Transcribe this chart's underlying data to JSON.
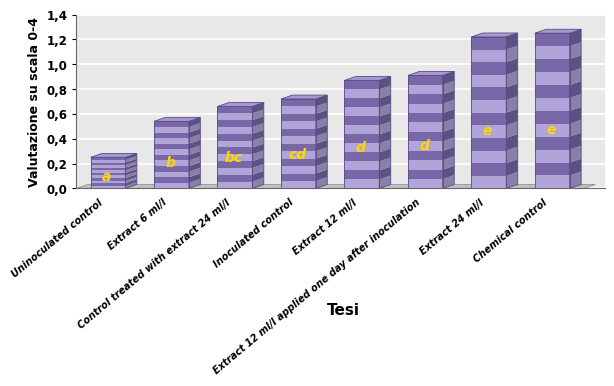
{
  "categories": [
    "Uninoculated control",
    "Extract 6 ml/l",
    "Control treated with extract 24 ml/l",
    "Inoculated control",
    "Extract 12 ml/l",
    "Extract 12 ml/l applied one day after inoculation",
    "Extract 24 ml/l",
    "Chemical control"
  ],
  "values": [
    0.25,
    0.54,
    0.66,
    0.72,
    0.87,
    0.91,
    1.22,
    1.25
  ],
  "labels": [
    "a",
    "b",
    "bc",
    "cd",
    "d",
    "d",
    "e",
    "e"
  ],
  "bar_color_face": "#8878B8",
  "bar_color_dark": "#5A4A8A",
  "bar_color_light": "#C0B4E0",
  "bar_color_top": "#A898D0",
  "ylabel": "Valutazione su scala 0-4",
  "xlabel": "Tesi",
  "ylim": [
    0.0,
    1.4
  ],
  "yticks": [
    0.0,
    0.2,
    0.4,
    0.6,
    0.8,
    1.0,
    1.2,
    1.4
  ],
  "ytick_labels": [
    "0,0",
    "0,2",
    "0,4",
    "0,6",
    "0,8",
    "1,0",
    "1,2",
    "1,4"
  ],
  "label_color": "#FFD700",
  "plot_bg": "#D8D8D8",
  "floor_color": "#C0C0C0",
  "wall_color": "#E8E8E8",
  "stripe_light": "#B0A4D8",
  "stripe_dark": "#7868A8"
}
